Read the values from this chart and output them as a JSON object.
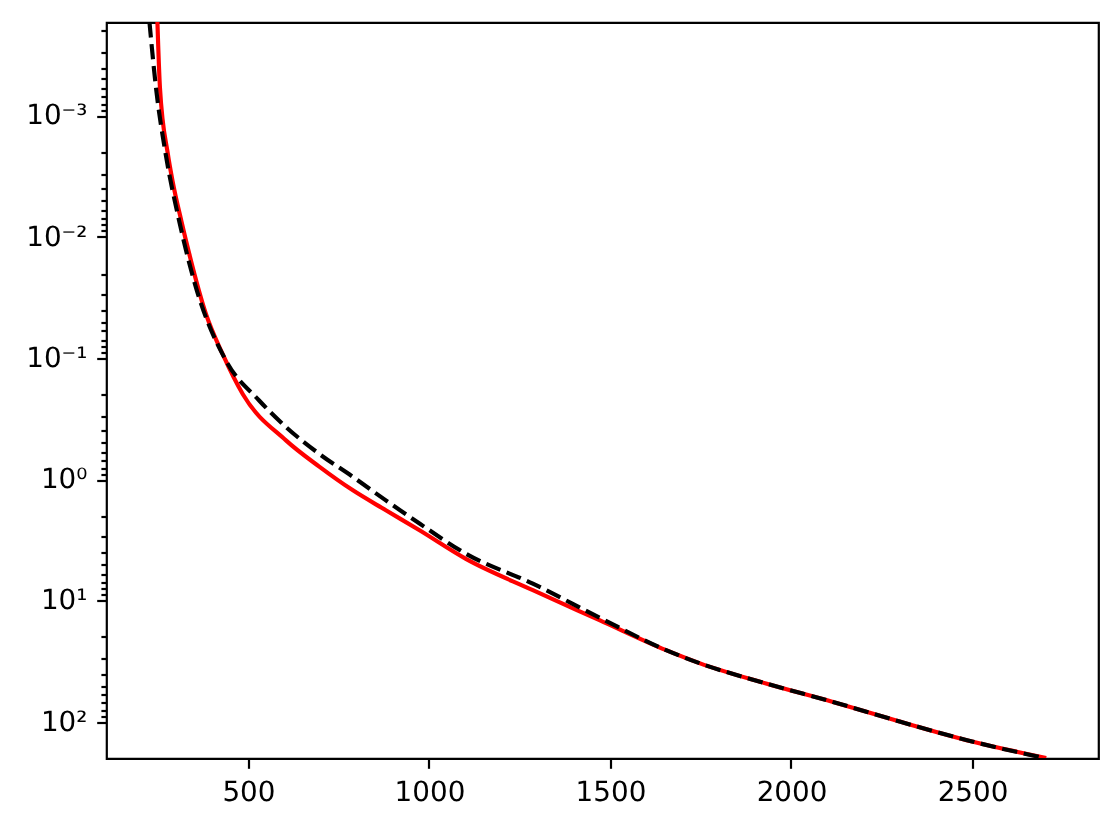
{
  "chart_data": {
    "type": "line",
    "log": true,
    "grid": false,
    "xlim": [
      108,
      2848
    ],
    "ylim": [
      200,
      0.00017
    ],
    "xticks": [
      500,
      1000,
      1500,
      2000,
      2500
    ],
    "yticks": [
      {
        "value": 0.0002,
        "label": null
      },
      {
        "value": 0.0003,
        "label": null
      },
      {
        "value": 0.0004,
        "label": null
      },
      {
        "value": 0.0005,
        "label": null
      },
      {
        "value": 0.0006,
        "label": null
      },
      {
        "value": 0.0007,
        "label": null
      },
      {
        "value": 0.0008,
        "label": null
      },
      {
        "value": 0.0009,
        "label": null
      },
      {
        "value": 0.001,
        "label": "10⁻³"
      },
      {
        "value": 0.002,
        "label": null
      },
      {
        "value": 0.003,
        "label": null
      },
      {
        "value": 0.004,
        "label": null
      },
      {
        "value": 0.005,
        "label": null
      },
      {
        "value": 0.006,
        "label": null
      },
      {
        "value": 0.007,
        "label": null
      },
      {
        "value": 0.008,
        "label": null
      },
      {
        "value": 0.009,
        "label": null
      },
      {
        "value": 0.01,
        "label": "10⁻²"
      },
      {
        "value": 0.02,
        "label": null
      },
      {
        "value": 0.03,
        "label": null
      },
      {
        "value": 0.04,
        "label": null
      },
      {
        "value": 0.05,
        "label": null
      },
      {
        "value": 0.06,
        "label": null
      },
      {
        "value": 0.07,
        "label": null
      },
      {
        "value": 0.08,
        "label": null
      },
      {
        "value": 0.09,
        "label": null
      },
      {
        "value": 0.1,
        "label": "10⁻¹"
      },
      {
        "value": 0.2,
        "label": null
      },
      {
        "value": 0.3,
        "label": null
      },
      {
        "value": 0.4,
        "label": null
      },
      {
        "value": 0.5,
        "label": null
      },
      {
        "value": 0.6,
        "label": null
      },
      {
        "value": 0.7,
        "label": null
      },
      {
        "value": 0.8,
        "label": null
      },
      {
        "value": 0.9,
        "label": null
      },
      {
        "value": 1,
        "label": "10⁰"
      },
      {
        "value": 2,
        "label": null
      },
      {
        "value": 3,
        "label": null
      },
      {
        "value": 4,
        "label": null
      },
      {
        "value": 5,
        "label": null
      },
      {
        "value": 6,
        "label": null
      },
      {
        "value": 7,
        "label": null
      },
      {
        "value": 8,
        "label": null
      },
      {
        "value": 9,
        "label": null
      },
      {
        "value": 10,
        "label": "10¹"
      },
      {
        "value": 20,
        "label": null
      },
      {
        "value": 30,
        "label": null
      },
      {
        "value": 40,
        "label": null
      },
      {
        "value": 50,
        "label": null
      },
      {
        "value": 60,
        "label": null
      },
      {
        "value": 70,
        "label": null
      },
      {
        "value": 80,
        "label": null
      },
      {
        "value": 90,
        "label": null
      },
      {
        "value": 100,
        "label": "10²"
      }
    ],
    "series": [
      {
        "color": "#ff0000",
        "line_style": "solid",
        "x": [
          250,
          257,
          279,
          292,
          316,
          338,
          384,
          430,
          486,
          605,
          697,
          790,
          881,
          974,
          1102,
          1287,
          1471,
          1655,
          1747,
          1931,
          2116,
          2300,
          2500,
          2705
        ],
        "values": [
          0.00017,
          0.00059,
          0.0021,
          0.0035,
          0.0074,
          0.0139,
          0.0435,
          0.093,
          0.2,
          0.48,
          0.79,
          1.24,
          1.81,
          2.65,
          4.56,
          8.26,
          14.6,
          25.8,
          33,
          48.6,
          69,
          100,
          146,
          200
        ]
      },
      {
        "color": "#000000",
        "line_style": "dashed",
        "x": [
          228,
          246,
          273,
          310,
          356,
          439,
          531,
          605,
          697,
          790,
          881,
          974,
          1102,
          1287,
          1471,
          1655,
          1747,
          1931,
          2116,
          2300,
          2500,
          2700
        ],
        "values": [
          0.00017,
          0.00059,
          0.0021,
          0.0074,
          0.026,
          0.105,
          0.225,
          0.372,
          0.62,
          0.96,
          1.5,
          2.33,
          4.13,
          7.29,
          13.9,
          25.8,
          33,
          48.6,
          69,
          100,
          146,
          200
        ]
      }
    ]
  }
}
